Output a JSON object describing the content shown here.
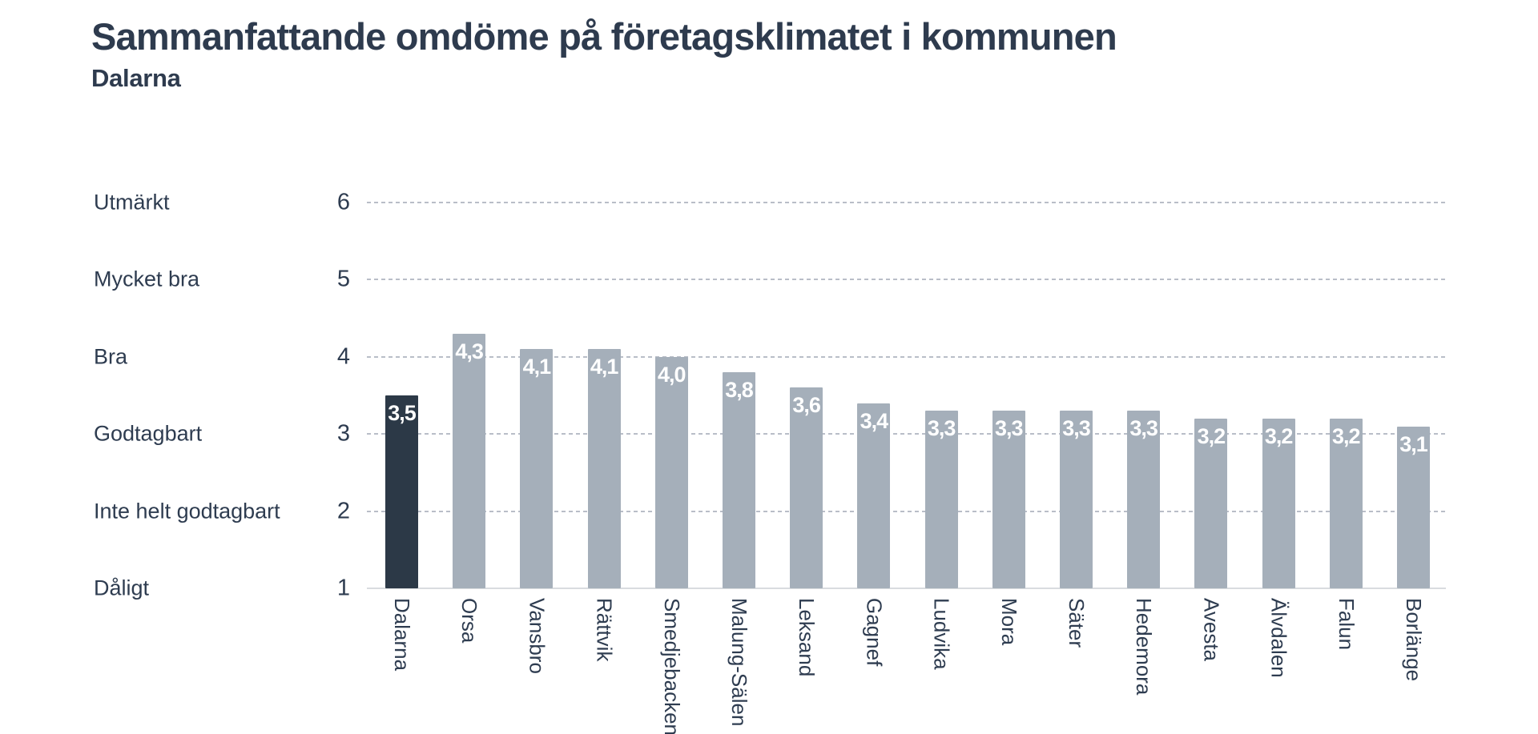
{
  "header": {
    "title": "Sammanfattande omdöme på företagsklimatet i kommunen",
    "subtitle": "Dalarna"
  },
  "colors": {
    "text": "#2e3c50",
    "title_text": "#2e3b4e",
    "highlight_bar": "#2c3947",
    "bar": "#a5afba",
    "gridline": "#b9bec8",
    "baseline": "#d9dcdf",
    "value_label": "#ffffff"
  },
  "y_axis": {
    "ratings": [
      {
        "label": "Utmärkt",
        "value": 6
      },
      {
        "label": "Mycket bra",
        "value": 5
      },
      {
        "label": "Bra",
        "value": 4
      },
      {
        "label": "Godtagbart",
        "value": 3
      },
      {
        "label": "Inte helt godtagbart",
        "value": 2
      },
      {
        "label": "Dåligt",
        "value": 1
      }
    ]
  },
  "chart_data": {
    "type": "bar",
    "title": "Sammanfattande omdöme på företagsklimatet i kommunen",
    "subtitle": "Dalarna",
    "categories": [
      "Dalarna",
      "Orsa",
      "Vansbro",
      "Rättvik",
      "Smedjebacken",
      "Malung-Sälen",
      "Leksand",
      "Gagnef",
      "Ludvika",
      "Mora",
      "Säter",
      "Hedemora",
      "Avesta",
      "Älvdalen",
      "Falun",
      "Borlänge"
    ],
    "values": [
      3.5,
      4.3,
      4.1,
      4.1,
      4.0,
      3.8,
      3.6,
      3.4,
      3.3,
      3.3,
      3.3,
      3.3,
      3.2,
      3.2,
      3.2,
      3.1
    ],
    "value_labels": [
      "3,5",
      "4,3",
      "4,1",
      "4,1",
      "4,0",
      "3,8",
      "3,6",
      "3,4",
      "3,3",
      "3,3",
      "3,3",
      "3,3",
      "3,2",
      "3,2",
      "3,2",
      "3,1"
    ],
    "highlighted_category": "Dalarna",
    "xlabel": "",
    "ylabel": "",
    "ylim": [
      1,
      6
    ],
    "y_ticks": [
      1,
      2,
      3,
      4,
      5,
      6
    ],
    "grid": "horizontal-dashed",
    "legend": "none"
  }
}
